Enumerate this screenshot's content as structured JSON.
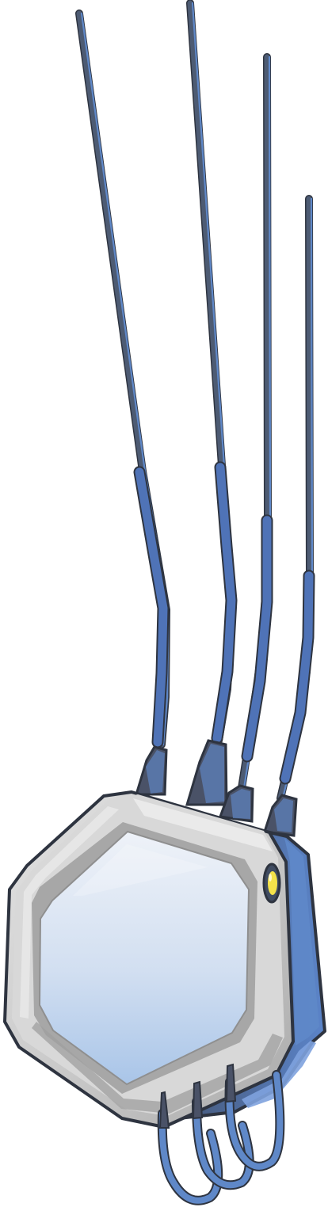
{
  "scene": {
    "subject": "wireless-router-illustration",
    "antenna_count": 4,
    "bottom_loop_count": 3,
    "has_status_light": true
  },
  "colors": {
    "background": "#ffffff",
    "antenna_dark": "#4d5b73",
    "antenna_light": "#5f88c8",
    "antenna_outline": "#2e3440",
    "body_light": "#dfdfdf",
    "body_mid": "#b8b8b8",
    "body_dark": "#999999",
    "screen_top": "#eef2f8",
    "screen_bottom": "#a9c5e8",
    "side_blue": "#4f73b7",
    "indicator_yellow": "#f4e24a"
  }
}
